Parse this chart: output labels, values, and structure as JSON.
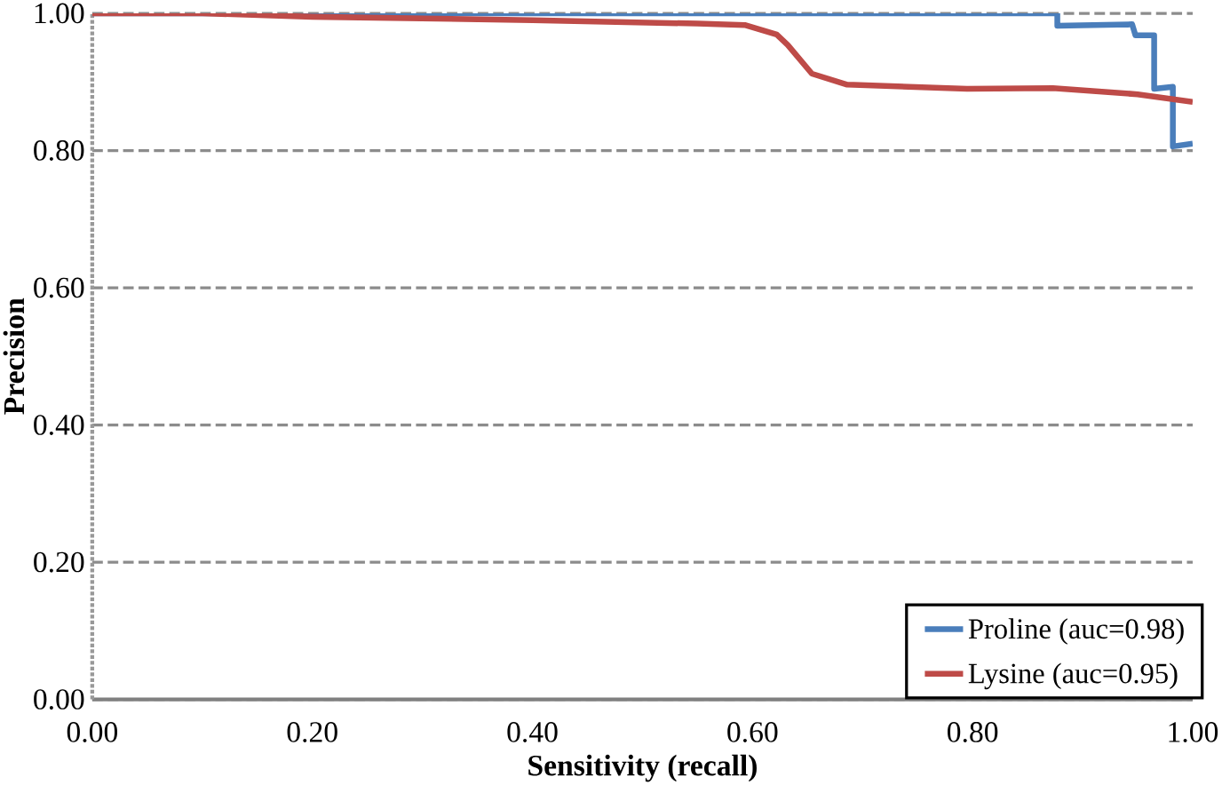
{
  "chart_data": {
    "type": "line",
    "xlabel": "Sensitivity (recall)",
    "ylabel": "Precision",
    "xlim": [
      0,
      1
    ],
    "ylim": [
      0,
      1
    ],
    "xticks": [
      {
        "value": 0,
        "label": "0.00"
      },
      {
        "value": 0.2,
        "label": "0.20"
      },
      {
        "value": 0.4,
        "label": "0.40"
      },
      {
        "value": 0.6,
        "label": "0.60"
      },
      {
        "value": 0.8,
        "label": "0.80"
      },
      {
        "value": 1,
        "label": "1.00"
      }
    ],
    "yticks": [
      {
        "value": 0,
        "label": "0.00"
      },
      {
        "value": 0.2,
        "label": "0.20"
      },
      {
        "value": 0.4,
        "label": "0.40"
      },
      {
        "value": 0.6,
        "label": "0.60"
      },
      {
        "value": 0.8,
        "label": "0.80"
      },
      {
        "value": 1,
        "label": "1.00"
      }
    ],
    "grid": "y",
    "legend": "bottom right",
    "marker": "none",
    "line_style": "solid",
    "series": [
      {
        "name": "Proline (auc=0.98)",
        "color": "#4a7ebb",
        "x": [
          0,
          0.877,
          0.877,
          0.945,
          0.948,
          0.965,
          0.965,
          0.982,
          0.982,
          1.0
        ],
        "values": [
          1,
          1,
          0.982,
          0.984,
          0.968,
          0.968,
          0.89,
          0.893,
          0.806,
          0.81
        ]
      },
      {
        "name": "Lysine (auc=0.95)",
        "color": "#be4b48",
        "x": [
          0,
          0.1,
          0.2,
          0.4,
          0.55,
          0.593,
          0.622,
          0.632,
          0.632,
          0.654,
          0.686,
          0.795,
          0.873,
          0.95,
          1.0
        ],
        "values": [
          1,
          1,
          0.995,
          0.99,
          0.985,
          0.983,
          0.969,
          0.954,
          0.954,
          0.912,
          0.896,
          0.89,
          0.891,
          0.882,
          0.871
        ]
      }
    ]
  }
}
